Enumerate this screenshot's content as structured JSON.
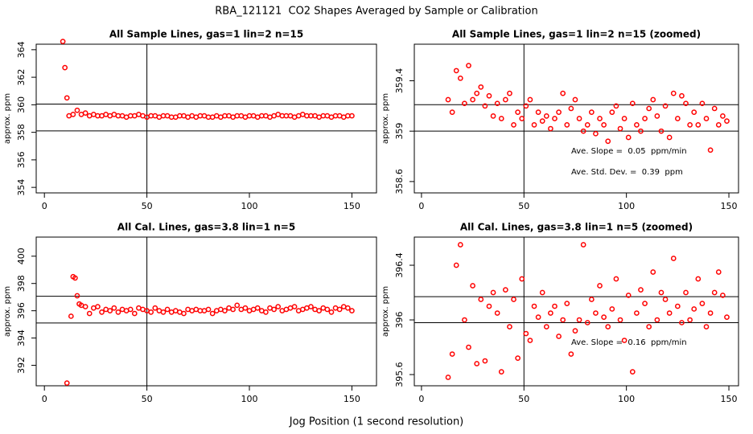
{
  "title": "RBA_121121  CO2 Shapes Averaged by Sample or Calibration",
  "xlabel": "Jog Position (1 second resolution)",
  "chart_data": [
    {
      "type": "scatter",
      "title": "All Sample Lines, gas=1 lin=2 n=15",
      "ylabel": "approx. ppm",
      "color": "#ff0000",
      "xlim": [
        -4,
        162
      ],
      "ylim": [
        353.6,
        364.4
      ],
      "xticks": [
        0,
        50,
        100,
        150
      ],
      "yticks": [
        354,
        356,
        358,
        360,
        362,
        364
      ],
      "hlines": [
        360.05,
        358.1
      ],
      "vline": 50,
      "annotations": [],
      "x": [
        9,
        10,
        11,
        12,
        14,
        16,
        18,
        20,
        22,
        24,
        26,
        28,
        30,
        32,
        34,
        36,
        38,
        40,
        42,
        44,
        46,
        48,
        50,
        52,
        54,
        56,
        58,
        60,
        62,
        64,
        66,
        68,
        70,
        72,
        74,
        76,
        78,
        80,
        82,
        84,
        86,
        88,
        90,
        92,
        94,
        96,
        98,
        100,
        102,
        104,
        106,
        108,
        110,
        112,
        114,
        116,
        118,
        120,
        122,
        124,
        126,
        128,
        130,
        132,
        134,
        136,
        138,
        140,
        142,
        144,
        146,
        148,
        150
      ],
      "values": [
        364.6,
        362.7,
        360.5,
        359.2,
        359.3,
        359.6,
        359.3,
        359.4,
        359.2,
        359.3,
        359.2,
        359.2,
        359.3,
        359.2,
        359.3,
        359.2,
        359.2,
        359.1,
        359.2,
        359.2,
        359.3,
        359.2,
        359.1,
        359.2,
        359.2,
        359.1,
        359.2,
        359.2,
        359.1,
        359.1,
        359.2,
        359.2,
        359.1,
        359.2,
        359.1,
        359.2,
        359.2,
        359.1,
        359.1,
        359.2,
        359.1,
        359.2,
        359.2,
        359.1,
        359.2,
        359.2,
        359.1,
        359.2,
        359.2,
        359.1,
        359.2,
        359.2,
        359.1,
        359.2,
        359.3,
        359.2,
        359.2,
        359.2,
        359.1,
        359.2,
        359.3,
        359.2,
        359.2,
        359.2,
        359.1,
        359.2,
        359.2,
        359.1,
        359.2,
        359.2,
        359.1,
        359.2,
        359.2
      ]
    },
    {
      "type": "scatter",
      "title": "All Sample Lines, gas=1 lin=2 n=15 (zoomed)",
      "ylabel": "approx. ppm",
      "color": "#ff0000",
      "xlim": [
        -3.5,
        154.7
      ],
      "ylim": [
        358.51,
        359.69
      ],
      "xticks": [
        0,
        50,
        100,
        150
      ],
      "yticks": [
        358.6,
        359.0,
        359.4
      ],
      "hlines": [
        359.21,
        359.0
      ],
      "vline": 50,
      "annotations": [
        "Ave. Slope =  0.05  ppm/min",
        "Ave. Std. Dev. =  0.39  ppm"
      ],
      "x": [
        13,
        15,
        17,
        19,
        21,
        23,
        25,
        27,
        29,
        31,
        33,
        35,
        37,
        39,
        41,
        43,
        45,
        47,
        49,
        51,
        53,
        55,
        57,
        59,
        61,
        63,
        65,
        67,
        69,
        71,
        73,
        75,
        77,
        79,
        81,
        83,
        85,
        87,
        89,
        91,
        93,
        95,
        97,
        99,
        101,
        103,
        105,
        107,
        109,
        111,
        113,
        115,
        117,
        119,
        121,
        123,
        125,
        127,
        129,
        131,
        133,
        135,
        137,
        139,
        141,
        143,
        145,
        147,
        149
      ],
      "values": [
        359.25,
        359.15,
        359.48,
        359.42,
        359.22,
        359.52,
        359.25,
        359.3,
        359.35,
        359.2,
        359.28,
        359.12,
        359.22,
        359.1,
        359.25,
        359.3,
        359.05,
        359.15,
        359.1,
        359.2,
        359.25,
        359.05,
        359.15,
        359.08,
        359.12,
        359.02,
        359.1,
        359.15,
        359.3,
        359.05,
        359.18,
        359.25,
        359.1,
        359.0,
        359.05,
        359.15,
        358.98,
        359.1,
        359.05,
        358.92,
        359.15,
        359.2,
        359.02,
        359.1,
        358.95,
        359.22,
        359.05,
        359.0,
        359.1,
        359.18,
        359.25,
        359.12,
        359.0,
        359.2,
        358.95,
        359.3,
        359.1,
        359.28,
        359.22,
        359.05,
        359.15,
        359.05,
        359.22,
        359.1,
        358.85,
        359.18,
        359.05,
        359.12,
        359.08
      ]
    },
    {
      "type": "scatter",
      "title": "All Cal. Lines, gas=3.8 lin=1 n=5",
      "ylabel": "approx. ppm",
      "color": "#ff0000",
      "xlim": [
        -4,
        162
      ],
      "ylim": [
        390.5,
        401.4
      ],
      "xticks": [
        0,
        50,
        100,
        150
      ],
      "yticks": [
        392,
        394,
        396,
        398,
        400
      ],
      "hlines": [
        397.06,
        395.1
      ],
      "vline": 50,
      "annotations": [],
      "x": [
        11,
        13,
        14,
        15,
        16,
        17,
        18,
        20,
        22,
        24,
        26,
        28,
        30,
        32,
        34,
        36,
        38,
        40,
        42,
        44,
        46,
        48,
        50,
        52,
        54,
        56,
        58,
        60,
        62,
        64,
        66,
        68,
        70,
        72,
        74,
        76,
        78,
        80,
        82,
        84,
        86,
        88,
        90,
        92,
        94,
        96,
        98,
        100,
        102,
        104,
        106,
        108,
        110,
        112,
        114,
        116,
        118,
        120,
        122,
        124,
        126,
        128,
        130,
        132,
        134,
        136,
        138,
        140,
        142,
        144,
        146,
        148,
        150
      ],
      "values": [
        390.7,
        395.6,
        398.5,
        398.4,
        397.1,
        396.5,
        396.4,
        396.3,
        395.8,
        396.2,
        396.3,
        395.9,
        396.1,
        396.0,
        396.2,
        395.9,
        396.1,
        396.0,
        396.1,
        395.8,
        396.2,
        396.1,
        396.0,
        395.9,
        396.2,
        396.0,
        395.9,
        396.1,
        395.9,
        396.0,
        395.9,
        395.8,
        396.1,
        396.0,
        396.1,
        396.0,
        396.0,
        396.1,
        395.8,
        396.0,
        396.1,
        396.0,
        396.2,
        396.1,
        396.4,
        396.1,
        396.2,
        396.0,
        396.1,
        396.2,
        396.0,
        395.9,
        396.2,
        396.1,
        396.3,
        396.0,
        396.1,
        396.2,
        396.3,
        396.0,
        396.1,
        396.2,
        396.3,
        396.1,
        396.0,
        396.2,
        396.1,
        395.9,
        396.2,
        396.1,
        396.3,
        396.2,
        396.0
      ]
    },
    {
      "type": "scatter",
      "title": "All Cal. Lines, gas=3.8 lin=1 n=5 (zoomed)",
      "ylabel": "approx. ppm",
      "color": "#ff0000",
      "xlim": [
        -3.5,
        154.7
      ],
      "ylim": [
        395.518,
        396.606
      ],
      "xticks": [
        0,
        50,
        100,
        150
      ],
      "yticks": [
        395.6,
        396.0,
        396.4
      ],
      "hlines": [
        396.17,
        395.98
      ],
      "vline": 50,
      "annotations": [
        "Ave. Slope =  0.16  ppm/min"
      ],
      "x": [
        13,
        15,
        17,
        19,
        21,
        23,
        25,
        27,
        29,
        31,
        33,
        35,
        37,
        39,
        41,
        43,
        45,
        47,
        49,
        51,
        53,
        55,
        57,
        59,
        61,
        63,
        65,
        67,
        69,
        71,
        73,
        75,
        77,
        79,
        81,
        83,
        85,
        87,
        89,
        91,
        93,
        95,
        97,
        99,
        101,
        103,
        105,
        107,
        109,
        111,
        113,
        115,
        117,
        119,
        121,
        123,
        125,
        127,
        129,
        131,
        133,
        135,
        137,
        139,
        141,
        143,
        145,
        147,
        149
      ],
      "values": [
        395.58,
        395.75,
        396.4,
        396.55,
        396.0,
        395.8,
        396.25,
        395.68,
        396.15,
        395.7,
        396.1,
        396.2,
        396.05,
        395.62,
        396.22,
        395.95,
        396.15,
        395.72,
        396.3,
        395.9,
        395.85,
        396.1,
        396.02,
        396.2,
        395.95,
        396.05,
        396.1,
        395.88,
        396.0,
        396.12,
        395.75,
        395.92,
        396.0,
        396.55,
        395.98,
        396.15,
        396.05,
        396.25,
        396.02,
        395.95,
        396.08,
        396.3,
        396.0,
        395.85,
        396.18,
        395.62,
        396.05,
        396.22,
        396.12,
        395.95,
        396.35,
        396.0,
        396.2,
        396.15,
        396.05,
        396.45,
        396.1,
        395.98,
        396.2,
        396.0,
        396.08,
        396.3,
        396.12,
        395.95,
        396.05,
        396.2,
        396.35,
        396.18,
        396.02
      ]
    }
  ]
}
